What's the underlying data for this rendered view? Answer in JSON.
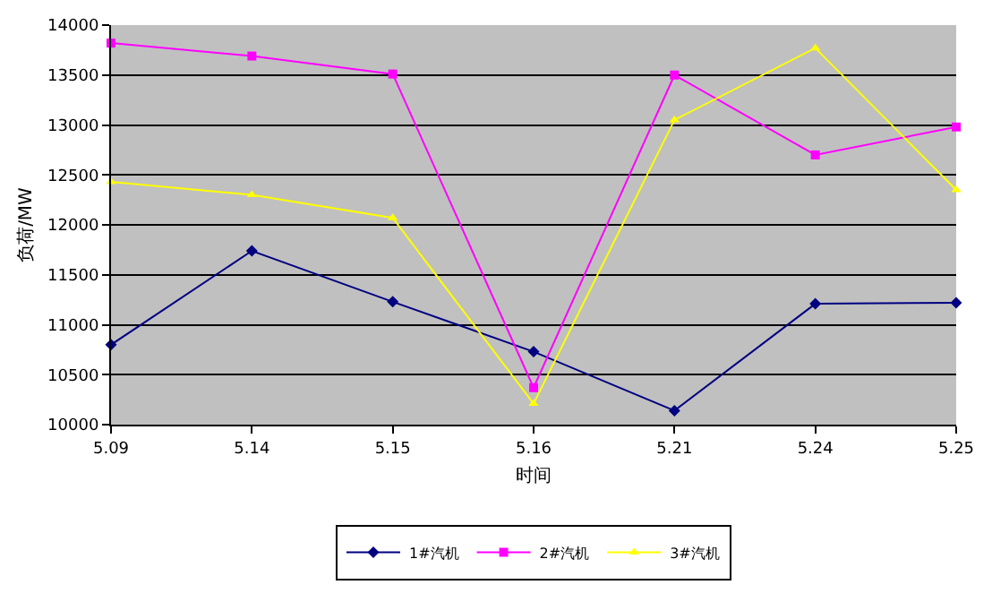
{
  "chart_data": {
    "type": "line",
    "xlabel": "时间",
    "ylabel": "负荷/MW",
    "categories": [
      "5.09",
      "5.14",
      "5.15",
      "5.16",
      "5.21",
      "5.24",
      "5.25"
    ],
    "series": [
      {
        "name": "1#汽机",
        "color": "#000080",
        "marker": "diamond",
        "values": [
          10800,
          11740,
          11230,
          10730,
          10140,
          11210,
          11220
        ]
      },
      {
        "name": "2#汽机",
        "color": "#ff00ff",
        "marker": "square",
        "values": [
          13820,
          13690,
          13510,
          10370,
          13500,
          12700,
          12980
        ]
      },
      {
        "name": "3#汽机",
        "color": "#ffff00",
        "marker": "triangle",
        "values": [
          12430,
          12300,
          12070,
          10210,
          13050,
          13770,
          12350
        ]
      }
    ],
    "ylim": [
      10000,
      14000
    ],
    "yticks": [
      10000,
      10500,
      11000,
      11500,
      12000,
      12500,
      13000,
      13500,
      14000
    ],
    "grid": "y",
    "legend": "bottom",
    "line_style": "solid"
  }
}
